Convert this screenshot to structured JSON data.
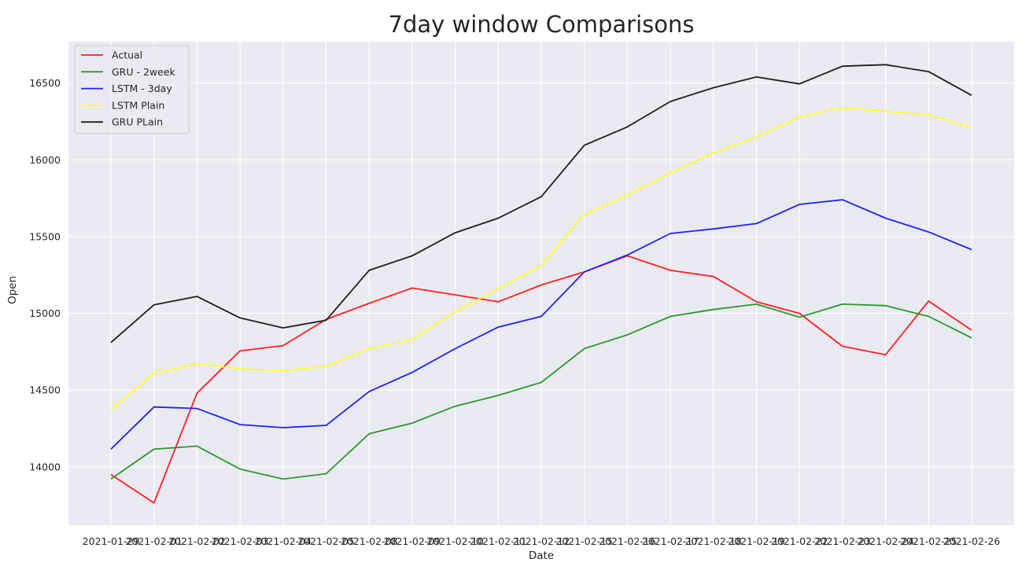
{
  "chart_data": {
    "type": "line",
    "title": "7day window Comparisons",
    "xlabel": "Date",
    "ylabel": "Open",
    "x": [
      "2021-01-29",
      "2021-02-01",
      "2021-02-02",
      "2021-02-03",
      "2021-02-04",
      "2021-02-05",
      "2021-02-08",
      "2021-02-09",
      "2021-02-10",
      "2021-02-11",
      "2021-02-12",
      "2021-02-15",
      "2021-02-16",
      "2021-02-17",
      "2021-02-18",
      "2021-02-19",
      "2021-02-22",
      "2021-02-23",
      "2021-02-24",
      "2021-02-25",
      "2021-02-26"
    ],
    "x_tick_labels": [
      "2021-01-29",
      "2021-02-01",
      "2021-02-02",
      "2021-02-03",
      "2021-02-04",
      "2021-02-05",
      "2021-02-08",
      "2021-02-09",
      "2021-02-10",
      "2021-02-11",
      "2021-02-12",
      "2021-02-15",
      "2021-02-16",
      "2021-02-17",
      "2021-02-18",
      "2021-02-19",
      "2021-02-22",
      "2021-02-23",
      "2021-02-24",
      "2021-02-25",
      "2021-02-26"
    ],
    "ylim": [
      13620,
      16770
    ],
    "yticks": [
      14000,
      14500,
      15000,
      15500,
      16000,
      16500
    ],
    "y_tick_labels": [
      "14000",
      "14500",
      "15000",
      "15500",
      "16000",
      "16500"
    ],
    "grid": true,
    "legend_position": "top-left",
    "series": [
      {
        "name": "Actual",
        "color": "#ff2020",
        "values": [
          13950,
          13765,
          14480,
          14755,
          14790,
          14960,
          15065,
          15165,
          15120,
          15075,
          15185,
          15270,
          15375,
          15280,
          15240,
          15075,
          15000,
          14785,
          14730,
          15080,
          14890
        ]
      },
      {
        "name": "GRU - 2week",
        "color": "#2a9a2a",
        "values": [
          13920,
          14115,
          14135,
          13985,
          13920,
          13955,
          14215,
          14285,
          14395,
          14465,
          14550,
          14770,
          14860,
          14980,
          15025,
          15060,
          14975,
          15060,
          15050,
          14980,
          14840
        ]
      },
      {
        "name": "LSTM - 3day",
        "color": "#2020ff",
        "values": [
          14115,
          14390,
          14380,
          14275,
          14255,
          14270,
          14490,
          14615,
          14770,
          14910,
          14980,
          15270,
          15380,
          15520,
          15550,
          15585,
          15710,
          15740,
          15620,
          15530,
          15415
        ]
      },
      {
        "name": "LSTM Plain",
        "color": "#ffff2a",
        "values": [
          14370,
          14610,
          14670,
          14640,
          14625,
          14655,
          14770,
          14830,
          15010,
          15160,
          15310,
          15645,
          15770,
          15915,
          16045,
          16150,
          16280,
          16340,
          16315,
          16295,
          16210
        ]
      },
      {
        "name": "GRU PLain",
        "color": "#1e1e1e",
        "values": [
          14810,
          15055,
          15110,
          14970,
          14905,
          14955,
          15280,
          15375,
          15525,
          15620,
          15760,
          16095,
          16215,
          16380,
          16470,
          16540,
          16495,
          16610,
          16620,
          16575,
          16420
        ]
      }
    ]
  }
}
